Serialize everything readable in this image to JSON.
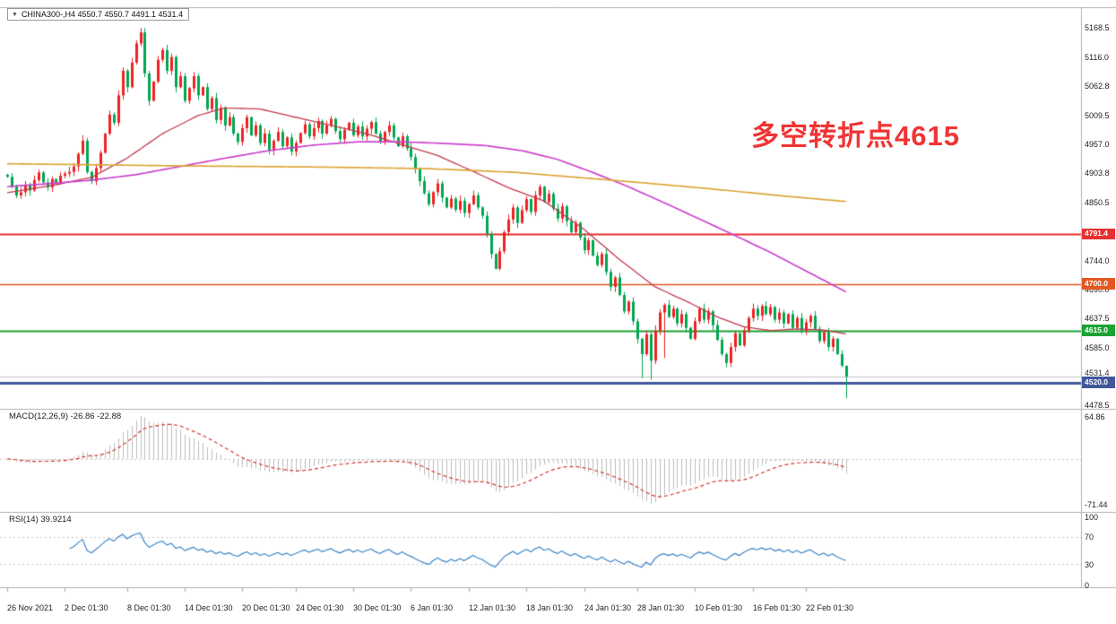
{
  "header": {
    "arrow_icon": "▼",
    "symbol": "CHINA300-",
    "timeframe": "H4",
    "open": "4550.7",
    "high": "4550.7",
    "low": "4491.1",
    "close": "4531.4",
    "text": "CHINA300-,H4 4550.7 4550.7 4491.1 4531.4"
  },
  "annotation": {
    "text": "多空转折点4615",
    "color": "#f03434"
  },
  "colors": {
    "candle_up": "#ee2222",
    "candle_down": "#00a651",
    "ma_fast": "#c23a4e",
    "ma_mid": "#cc44cc",
    "ma_slow": "#dda63a",
    "macd_hist": "#bdbdbd",
    "macd_signal": "#d4382f",
    "rsi_line": "#3d85c6",
    "annotation": "#f03434",
    "separator": "#b0b0b0",
    "level_red": "#e53131",
    "level_orange_red": "#e25822",
    "level_green": "#1aa333",
    "level_blue": "#40589b",
    "current_price_line": "#c0c0c0"
  },
  "hlines": [
    {
      "price": 4791.4,
      "color": "#e53131",
      "width": 2
    },
    {
      "price": 4700.0,
      "color": "#e25822",
      "width": 1.5
    },
    {
      "price": 4615.0,
      "color": "#1aa333",
      "width": 2
    },
    {
      "price": 4531.4,
      "color": "#c0c0c0",
      "width": 1
    },
    {
      "price": 4520.0,
      "color": "#40589b",
      "width": 3
    }
  ],
  "price_axis": {
    "ticks": [
      {
        "label": "5168.5",
        "price": 5168.5
      },
      {
        "label": "5116.0",
        "price": 5116.0
      },
      {
        "label": "5062.8",
        "price": 5062.8
      },
      {
        "label": "5009.5",
        "price": 5009.5
      },
      {
        "label": "4957.0",
        "price": 4957.0
      },
      {
        "label": "4903.8",
        "price": 4903.8
      },
      {
        "label": "4850.5",
        "price": 4850.5
      },
      {
        "label": "4744.0",
        "price": 4744.0
      },
      {
        "label": "4690.0",
        "price": 4690.0
      },
      {
        "label": "4637.5",
        "price": 4637.5
      },
      {
        "label": "4585.0",
        "price": 4585.0
      },
      {
        "label": "4478.5",
        "price": 4478.5
      }
    ],
    "current": {
      "label": "4531.4",
      "price": 4531.4
    },
    "badges": [
      {
        "label": "4791.4",
        "price": 4791.4,
        "color": "#e53131"
      },
      {
        "label": "4700.0",
        "price": 4700.0,
        "color": "#e25822"
      },
      {
        "label": "4615.0",
        "price": 4615.0,
        "color": "#1aa333"
      },
      {
        "label": "4520.0",
        "price": 4520.0,
        "color": "#40589b"
      }
    ]
  },
  "macd": {
    "label": "MACD(12,26,9) -26.86 -22.88",
    "axis": [
      {
        "label": "64.86",
        "value": 64.86
      },
      {
        "label": "-71.44",
        "value": -71.44
      }
    ]
  },
  "rsi": {
    "label": "RSI(14) 39.9214",
    "axis": [
      {
        "label": "100",
        "value": 100
      },
      {
        "label": "70",
        "value": 70
      },
      {
        "label": "30",
        "value": 30
      },
      {
        "label": "0",
        "value": 0
      }
    ],
    "levels": [
      70,
      30
    ]
  },
  "time_axis": {
    "labels": [
      {
        "label": "26 Nov 2021",
        "bar": 0
      },
      {
        "label": "2 Dec 01:30",
        "bar": 13
      },
      {
        "label": "8 Dec 01:30",
        "bar": 27
      },
      {
        "label": "14 Dec 01:30",
        "bar": 40
      },
      {
        "label": "20 Dec 01:30",
        "bar": 53
      },
      {
        "label": "24 Dec 01:30",
        "bar": 65
      },
      {
        "label": "30 Dec 01:30",
        "bar": 78
      },
      {
        "label": "6 Jan 01:30",
        "bar": 91
      },
      {
        "label": "12 Jan 01:30",
        "bar": 104
      },
      {
        "label": "18 Jan 01:30",
        "bar": 117
      },
      {
        "label": "24 Jan 01:30",
        "bar": 130
      },
      {
        "label": "28 Jan 01:30",
        "bar": 142
      },
      {
        "label": "10 Feb 01:30",
        "bar": 155
      },
      {
        "label": "16 Feb 01:30",
        "bar": 168
      },
      {
        "label": "22 Feb 01:30",
        "bar": 180
      }
    ]
  },
  "chart_data": {
    "type": "candlestick",
    "title": "CHINA300- H4",
    "symbol": "CHINA300-",
    "timeframe": "H4",
    "ylim": [
      4478.5,
      5168.5
    ],
    "last_bar": {
      "open": 4550.7,
      "high": 4550.7,
      "low": 4491.1,
      "close": 4531.4
    },
    "levels": [
      4791.4,
      4700.0,
      4615.0,
      4520.0
    ],
    "closes": [
      4896,
      4878,
      4862,
      4868,
      4882,
      4871,
      4890,
      4904,
      4886,
      4877,
      4892,
      4885,
      4898,
      4902,
      4905,
      4915,
      4938,
      4962,
      4905,
      4888,
      4912,
      4940,
      4975,
      5010,
      4995,
      5045,
      5090,
      5060,
      5105,
      5140,
      5160,
      5085,
      5035,
      5070,
      5110,
      5128,
      5090,
      5115,
      5060,
      5080,
      5035,
      5058,
      5080,
      5045,
      5060,
      5020,
      5040,
      5000,
      5022,
      4990,
      5005,
      4975,
      4960,
      4985,
      5005,
      4972,
      4990,
      4958,
      4975,
      4945,
      4962,
      4978,
      4952,
      4968,
      4942,
      4958,
      4976,
      4992,
      4970,
      4985,
      4998,
      4975,
      4990,
      5002,
      4980,
      4965,
      4982,
      4995,
      4972,
      4988,
      4970,
      4984,
      4996,
      4975,
      4960,
      4978,
      4990,
      4968,
      4952,
      4970,
      4948,
      4932,
      4910,
      4888,
      4866,
      4846,
      4868,
      4884,
      4858,
      4840,
      4856,
      4836,
      4852,
      4830,
      4846,
      4862,
      4840,
      4825,
      4792,
      4755,
      4728,
      4760,
      4795,
      4818,
      4840,
      4812,
      4835,
      4855,
      4832,
      4862,
      4878,
      4850,
      4865,
      4838,
      4820,
      4842,
      4815,
      4795,
      4812,
      4785,
      4762,
      4780,
      4752,
      4735,
      4755,
      4722,
      4695,
      4712,
      4680,
      4650,
      4668,
      4632,
      4600,
      4572,
      4608,
      4560,
      4615,
      4648,
      4662,
      4640,
      4655,
      4628,
      4645,
      4620,
      4600,
      4632,
      4655,
      4635,
      4650,
      4625,
      4598,
      4572,
      4556,
      4585,
      4610,
      4588,
      4615,
      4638,
      4655,
      4642,
      4660,
      4645,
      4658,
      4635,
      4648,
      4628,
      4645,
      4620,
      4638,
      4615,
      4630,
      4642,
      4618,
      4596,
      4612,
      4585,
      4600,
      4572,
      4550.7,
      4531.4
    ],
    "overrides": {
      "17": {
        "high": 4972
      },
      "30": {
        "high": 5168.5
      },
      "143": {
        "low": 4528
      },
      "145": {
        "low": 4525
      },
      "148": {
        "low": 4565
      },
      "162": {
        "low": 4548
      },
      "189": {
        "open": 4550.7,
        "high": 4550.7,
        "low": 4491.1,
        "close": 4531.4
      }
    },
    "moving_averages": [
      {
        "name": "ma-fast-red",
        "color_key": "ma_fast",
        "width": 1.3,
        "points": [
          [
            0,
            4867
          ],
          [
            10,
            4880
          ],
          [
            19,
            4895
          ],
          [
            27,
            4930
          ],
          [
            35,
            4975
          ],
          [
            43,
            5008
          ],
          [
            49,
            5022
          ],
          [
            57,
            5020
          ],
          [
            65,
            5005
          ],
          [
            73,
            4990
          ],
          [
            81,
            4975
          ],
          [
            89,
            4955
          ],
          [
            97,
            4935
          ],
          [
            105,
            4906
          ],
          [
            113,
            4876
          ],
          [
            121,
            4852
          ],
          [
            130,
            4800
          ],
          [
            138,
            4745
          ],
          [
            146,
            4695
          ],
          [
            154,
            4665
          ],
          [
            160,
            4640
          ],
          [
            166,
            4622
          ],
          [
            172,
            4615
          ],
          [
            178,
            4618
          ],
          [
            184,
            4616
          ],
          [
            189,
            4609
          ]
        ]
      },
      {
        "name": "ma-mid-magenta",
        "color_key": "ma_mid",
        "width": 1.7,
        "points": [
          [
            0,
            4878
          ],
          [
            10,
            4884
          ],
          [
            19,
            4890
          ],
          [
            29,
            4900
          ],
          [
            39,
            4915
          ],
          [
            49,
            4930
          ],
          [
            59,
            4944
          ],
          [
            69,
            4954
          ],
          [
            79,
            4960
          ],
          [
            89,
            4960
          ],
          [
            99,
            4957
          ],
          [
            108,
            4953
          ],
          [
            116,
            4944
          ],
          [
            124,
            4928
          ],
          [
            132,
            4904
          ],
          [
            140,
            4878
          ],
          [
            148,
            4849
          ],
          [
            156,
            4819
          ],
          [
            164,
            4789
          ],
          [
            172,
            4758
          ],
          [
            180,
            4724
          ],
          [
            189,
            4686
          ]
        ]
      },
      {
        "name": "ma-slow-orange",
        "color_key": "ma_slow",
        "width": 1.7,
        "points": [
          [
            0,
            4920
          ],
          [
            40,
            4916
          ],
          [
            70,
            4914
          ],
          [
            95,
            4911
          ],
          [
            115,
            4904
          ],
          [
            130,
            4894
          ],
          [
            145,
            4884
          ],
          [
            160,
            4873
          ],
          [
            175,
            4861
          ],
          [
            189,
            4851
          ]
        ]
      }
    ],
    "indicators": [
      {
        "name": "MACD",
        "params": [
          12,
          26,
          9
        ],
        "current": [
          -26.86,
          -22.88
        ],
        "axis_range": [
          -71.44,
          64.86
        ]
      },
      {
        "name": "RSI",
        "params": [
          14
        ],
        "current": 39.9214,
        "axis_range": [
          0,
          100
        ]
      }
    ]
  }
}
